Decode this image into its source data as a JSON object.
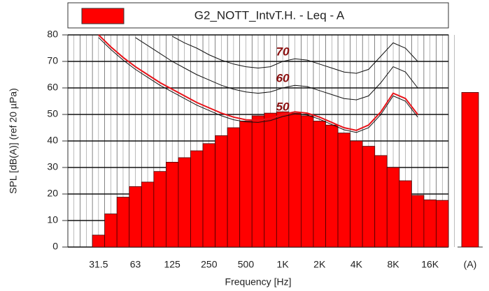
{
  "chart_data": {
    "type": "bar",
    "legend": "G2_NOTT_IntvT.H. - Leq - A",
    "ylabel": "SPL [dB(A)] (ref 20 µPa)",
    "xlabel": "Frequency [Hz]",
    "color": "#ff0000",
    "categories": [
      null,
      null,
      "31.5",
      null,
      null,
      "63",
      null,
      null,
      "125",
      null,
      null,
      "250",
      null,
      null,
      "500",
      null,
      null,
      "1K",
      null,
      null,
      "2K",
      null,
      null,
      "4K",
      null,
      null,
      "8K",
      null,
      null,
      "16K",
      null
    ],
    "values": [
      0,
      0,
      4.5,
      12.5,
      18.8,
      22.8,
      24.5,
      28.5,
      32,
      33.7,
      36.3,
      39,
      42,
      45,
      47.5,
      49.5,
      50.5,
      51,
      50.5,
      49.5,
      47.5,
      46,
      43,
      40,
      38,
      34.5,
      30,
      25,
      19.5,
      17.8,
      17.6
    ],
    "total": {
      "label": "(A)",
      "value": 58.3
    },
    "curve": {
      "color": "#e8141a",
      "values": [
        null,
        null,
        80,
        75.5,
        71.5,
        68,
        65,
        62,
        59.5,
        57,
        54.5,
        52.5,
        50.5,
        49,
        48,
        47.8,
        48.5,
        50,
        51,
        50.5,
        49,
        47,
        45,
        44,
        46,
        51,
        58,
        56,
        50,
        null,
        null
      ]
    },
    "contours": [
      {
        "label": "50",
        "values": [
          null,
          null,
          79,
          74.5,
          70.5,
          67,
          64,
          61,
          58.5,
          56,
          53.5,
          51.5,
          49.5,
          48,
          47.2,
          47,
          47.7,
          49.2,
          50.2,
          49.8,
          48.2,
          46.2,
          44.2,
          43.2,
          45,
          50,
          57,
          55,
          49,
          null,
          null
        ]
      },
      {
        "label": "60",
        "values": [
          null,
          null,
          null,
          null,
          null,
          79,
          76,
          73,
          70,
          67.5,
          65,
          63,
          61,
          59.5,
          58.5,
          58,
          58.5,
          60,
          61,
          60.5,
          59,
          57.5,
          56,
          55.5,
          57,
          62,
          68,
          66,
          60,
          null,
          null
        ]
      },
      {
        "label": "70",
        "values": [
          null,
          null,
          null,
          null,
          null,
          null,
          null,
          null,
          79.5,
          77,
          75,
          72.5,
          70.5,
          69,
          68,
          67.5,
          68,
          70,
          71,
          70.5,
          69,
          67.5,
          66,
          65.5,
          67,
          72,
          77,
          75,
          70,
          null,
          null
        ]
      }
    ],
    "ylim": [
      0,
      80
    ],
    "yticks": [
      0,
      10,
      20,
      30,
      40,
      50,
      60,
      70,
      80
    ],
    "grid": true
  }
}
